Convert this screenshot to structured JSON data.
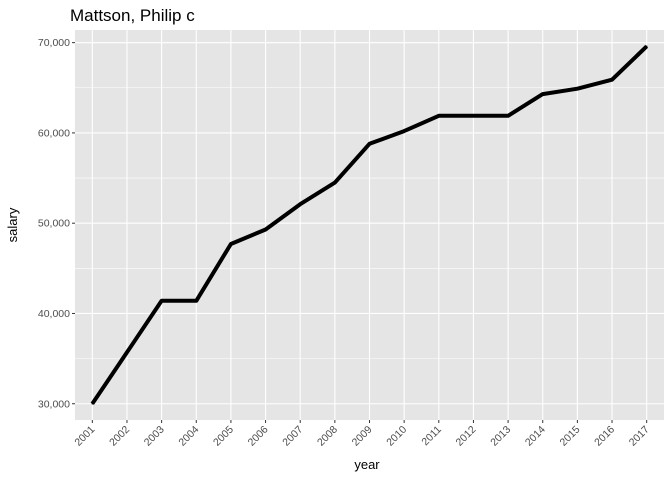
{
  "chart_data": {
    "type": "line",
    "title": "Mattson, Philip c",
    "xlabel": "year",
    "ylabel": "salary",
    "x": [
      "2001",
      "2002",
      "2003",
      "2004",
      "2005",
      "2006",
      "2007",
      "2008",
      "2009",
      "2010",
      "2011",
      "2012",
      "2013",
      "2014",
      "2015",
      "2016",
      "2017"
    ],
    "series": [
      {
        "values": [
          30000,
          35700,
          41400,
          41400,
          47700,
          49300,
          52100,
          54500,
          58800,
          60200,
          61900,
          61900,
          61900,
          64300,
          64900,
          65900,
          69600
        ]
      }
    ],
    "y_ticks": [
      30000,
      40000,
      50000,
      60000,
      70000
    ],
    "y_tick_labels": [
      "30,000",
      "40,000",
      "50,000",
      "60,000",
      "70,000"
    ],
    "ylim": [
      28200,
      71400
    ],
    "grid": true,
    "colors": {
      "panel": "#e5e5e5",
      "grid": "#ffffff",
      "line": "#000000"
    }
  }
}
